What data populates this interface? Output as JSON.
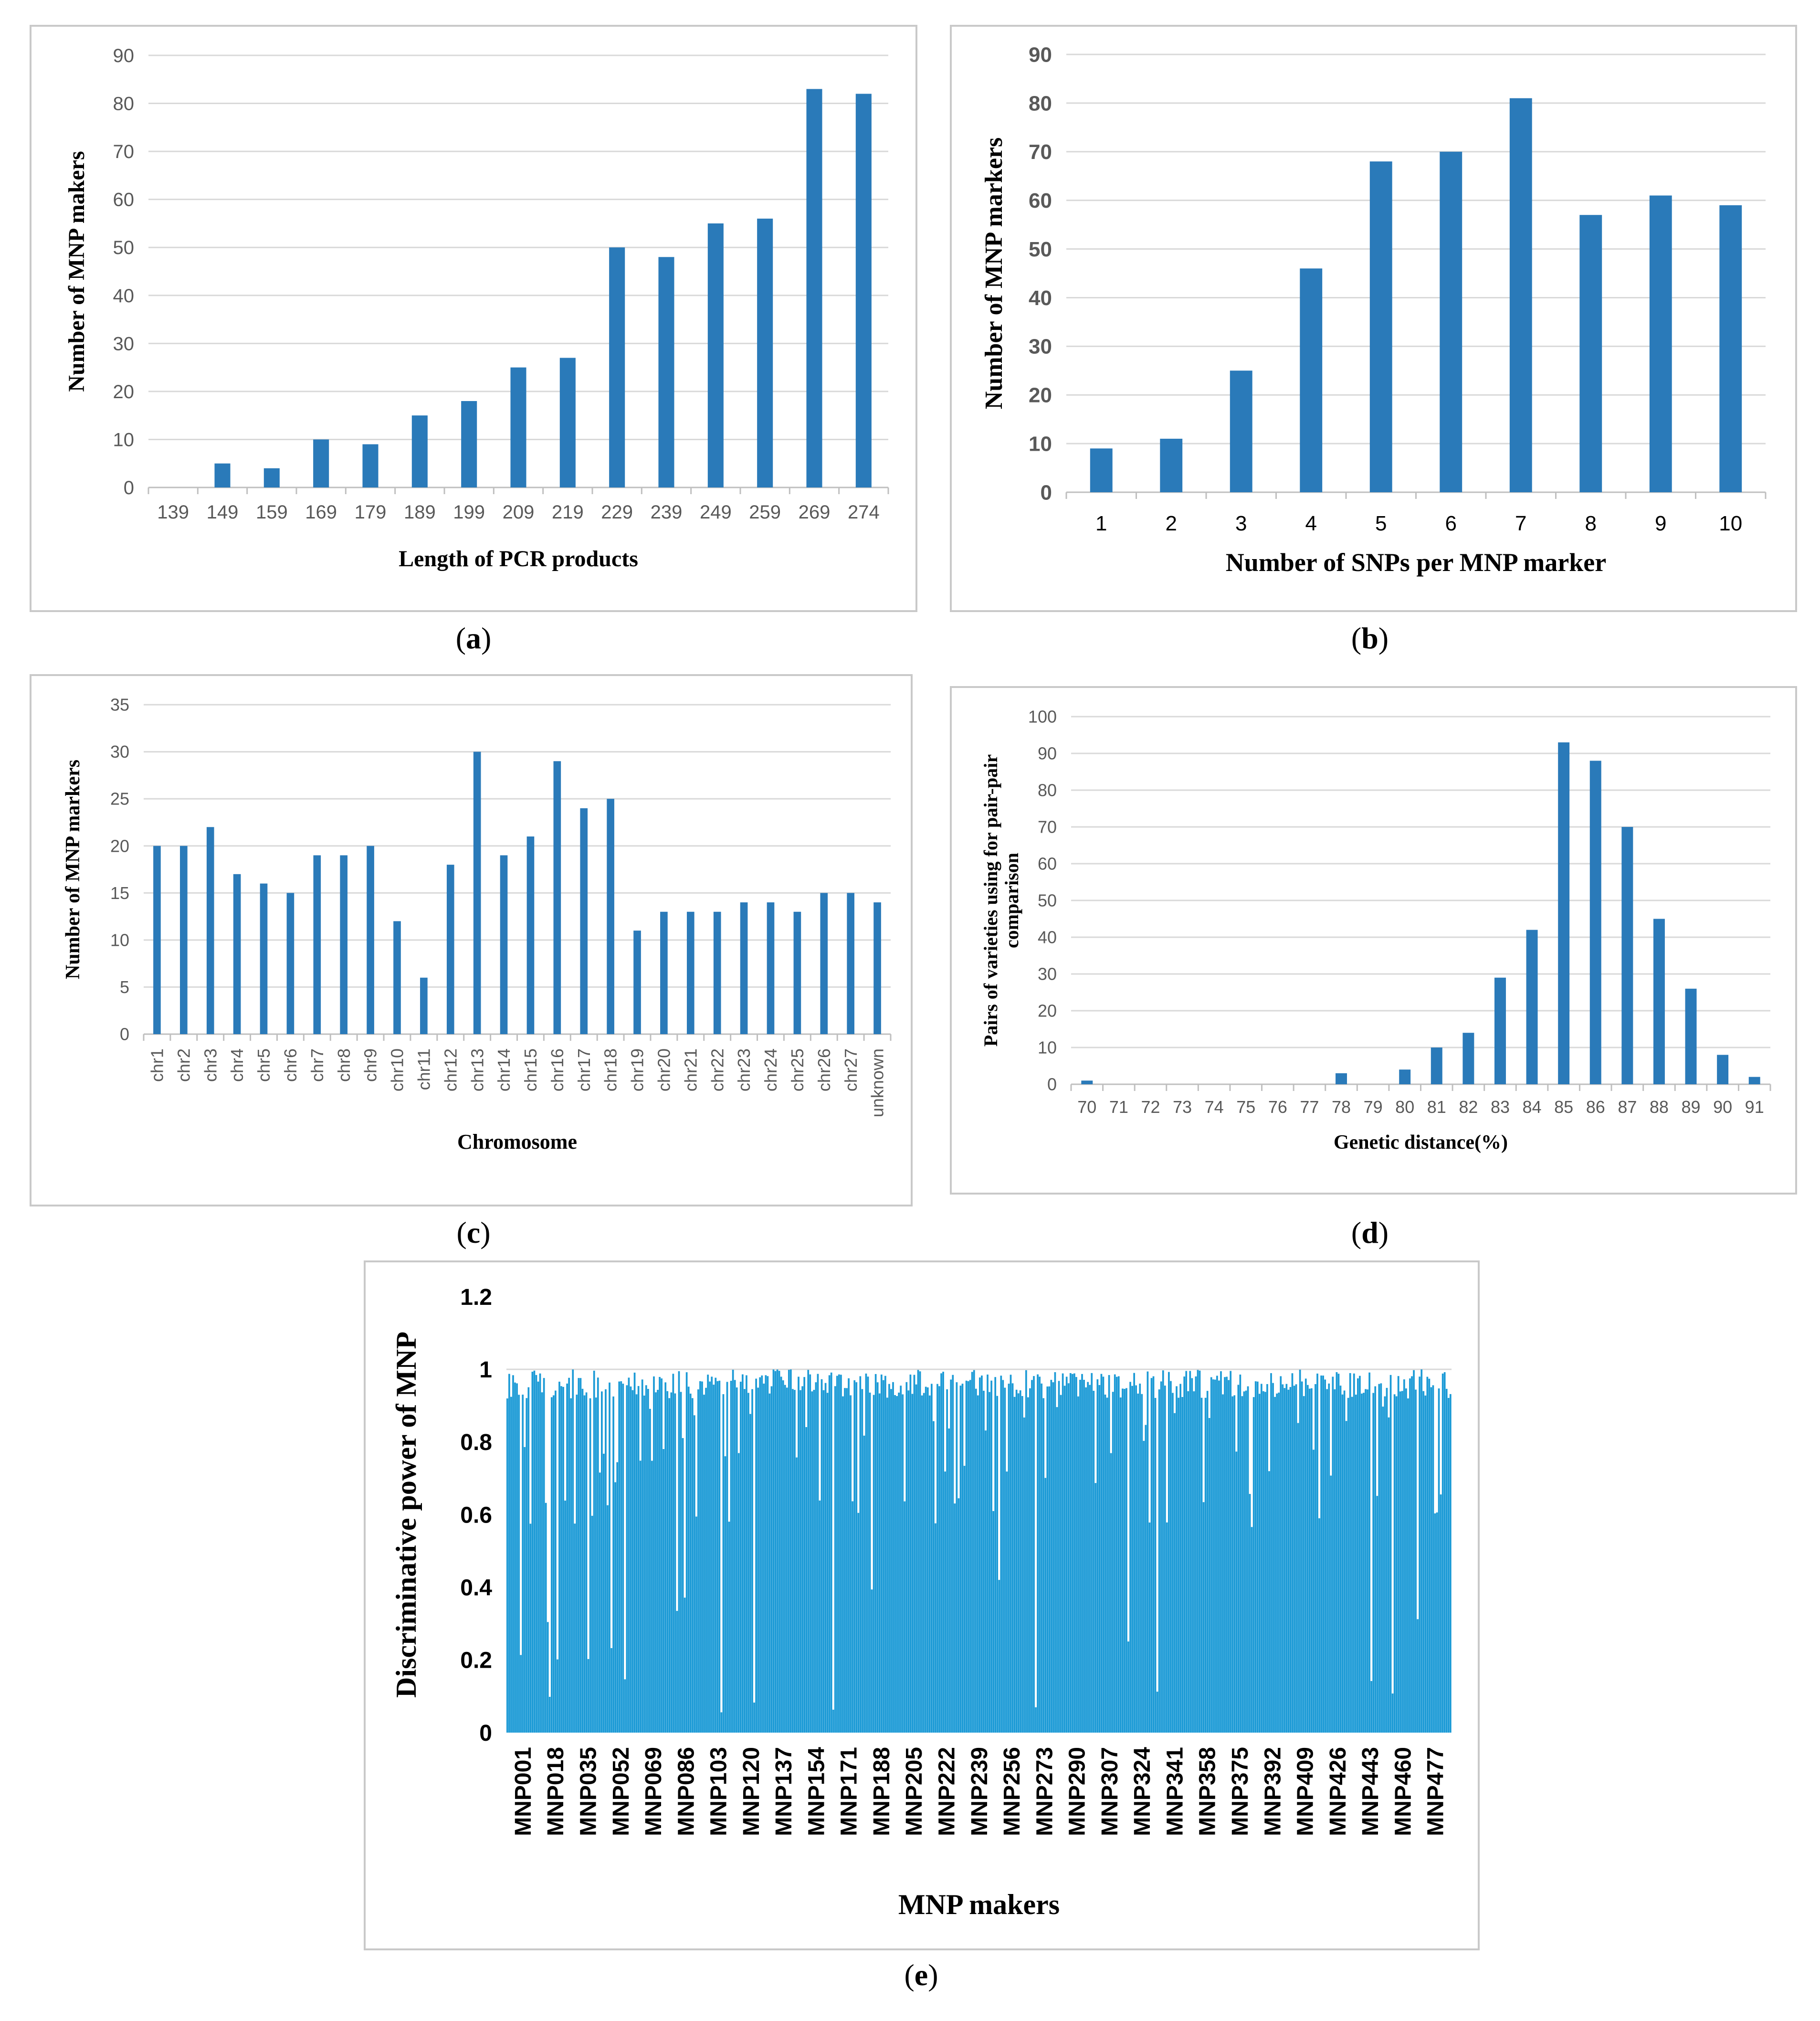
{
  "panels": [
    {
      "key": "a",
      "caption": "a",
      "chart_data": {
        "type": "bar",
        "title": "",
        "xlabel": "Length of PCR products",
        "ylabel": "Number of MNP makers",
        "categories": [
          "139",
          "149",
          "159",
          "169",
          "179",
          "189",
          "199",
          "209",
          "219",
          "229",
          "239",
          "249",
          "259",
          "269",
          "274"
        ],
        "values": [
          0,
          5,
          4,
          10,
          9,
          15,
          18,
          25,
          27,
          50,
          48,
          55,
          56,
          83,
          82
        ],
        "ylim": [
          0,
          90
        ],
        "yticks": [
          0,
          10,
          20,
          30,
          40,
          50,
          60,
          70,
          80,
          90
        ],
        "grid": true,
        "color": "#2a7ab9"
      }
    },
    {
      "key": "b",
      "caption": "b",
      "chart_data": {
        "type": "bar",
        "title": "",
        "xlabel": "Number of SNPs per MNP marker",
        "ylabel": "Number of MNP markers",
        "categories": [
          "1",
          "2",
          "3",
          "4",
          "5",
          "6",
          "7",
          "8",
          "9",
          "10"
        ],
        "values": [
          9,
          11,
          25,
          46,
          68,
          70,
          81,
          57,
          61,
          59
        ],
        "ylim": [
          0,
          90
        ],
        "yticks": [
          0,
          10,
          20,
          30,
          40,
          50,
          60,
          70,
          80,
          90
        ],
        "grid": true,
        "color": "#2a7ab9"
      }
    },
    {
      "key": "c",
      "caption": "c",
      "chart_data": {
        "type": "bar",
        "title": "",
        "xlabel": "Chromosome",
        "ylabel": "Number of MNP markers",
        "categories": [
          "chr1",
          "chr2",
          "chr3",
          "chr4",
          "chr5",
          "chr6",
          "chr7",
          "chr8",
          "chr9",
          "chr10",
          "chr11",
          "chr12",
          "chr13",
          "chr14",
          "chr15",
          "chr16",
          "chr17",
          "chr18",
          "chr19",
          "chr20",
          "chr21",
          "chr22",
          "chr23",
          "chr24",
          "chr25",
          "chr26",
          "chr27",
          "unknown"
        ],
        "values": [
          20,
          20,
          22,
          17,
          16,
          15,
          19,
          19,
          20,
          12,
          6,
          18,
          30,
          19,
          21,
          29,
          24,
          25,
          11,
          13,
          13,
          13,
          14,
          14,
          13,
          15,
          15,
          14
        ],
        "ylim": [
          0,
          35
        ],
        "yticks": [
          0,
          5,
          10,
          15,
          20,
          25,
          30,
          35
        ],
        "grid": true,
        "color": "#2a7ab9"
      }
    },
    {
      "key": "d",
      "caption": "d",
      "chart_data": {
        "type": "bar",
        "title": "",
        "xlabel": "Genetic distance(%)",
        "ylabel": "Pairs of varieties using for pair-pair comparison",
        "ylabel_lines": [
          "Pairs of varieties using for pair-pair",
          "comparison"
        ],
        "categories": [
          "70",
          "71",
          "72",
          "73",
          "74",
          "75",
          "76",
          "77",
          "78",
          "79",
          "80",
          "81",
          "82",
          "83",
          "84",
          "85",
          "86",
          "87",
          "88",
          "89",
          "90",
          "91"
        ],
        "values": [
          1,
          0,
          0,
          0,
          0,
          0,
          0,
          0,
          3,
          0,
          4,
          10,
          14,
          29,
          42,
          93,
          88,
          70,
          45,
          26,
          8,
          2
        ],
        "ylim": [
          0,
          100
        ],
        "yticks": [
          0,
          10,
          20,
          30,
          40,
          50,
          60,
          70,
          80,
          90,
          100
        ],
        "grid": true,
        "color": "#2a7ab9"
      }
    },
    {
      "key": "e",
      "caption": "e",
      "chart_data": {
        "type": "bar",
        "title": "",
        "xlabel": "MNP makers",
        "ylabel": "Discriminative power of MNP",
        "categories": [
          "MNP001",
          "MNP018",
          "MNP035",
          "MNP052",
          "MNP069",
          "MNP086",
          "MNP103",
          "MNP120",
          "MNP137",
          "MNP154",
          "MNP171",
          "MNP188",
          "MNP205",
          "MNP222",
          "MNP239",
          "MNP256",
          "MNP273",
          "MNP290",
          "MNP307",
          "MNP324",
          "MNP341",
          "MNP358",
          "MNP375",
          "MNP392",
          "MNP409",
          "MNP426",
          "MNP443",
          "MNP460",
          "MNP477"
        ],
        "values": [
          0.98,
          0.95,
          0.97,
          0.99,
          0.96,
          0.93,
          0.98,
          0.97,
          0.99,
          0.96,
          0.95,
          0.98,
          0.97,
          0.96,
          0.99,
          0.98,
          0.95,
          0.99,
          0.97,
          0.96,
          0.98,
          0.95,
          0.97,
          0.98,
          0.96,
          0.95,
          0.97,
          0.96,
          0.98
        ],
        "ylim": [
          0,
          1.2
        ],
        "yticks": [
          "0",
          "0.2",
          "0.4",
          "0.6",
          "0.8",
          "1",
          "1.2"
        ],
        "grid": false,
        "color": "#1b9ad6"
      }
    }
  ]
}
